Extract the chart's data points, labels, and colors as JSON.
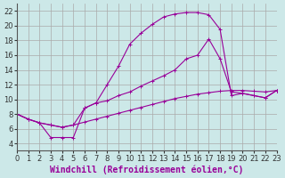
{
  "background_color": "#cce8e8",
  "grid_color": "#aaaaaa",
  "line_color": "#990099",
  "xlabel": "Windchill (Refroidissement éolien,°C)",
  "xlim": [
    0,
    23
  ],
  "ylim": [
    3,
    23
  ],
  "xticks": [
    0,
    1,
    2,
    3,
    4,
    5,
    6,
    7,
    8,
    9,
    10,
    11,
    12,
    13,
    14,
    15,
    16,
    17,
    18,
    19,
    20,
    21,
    22,
    23
  ],
  "yticks": [
    4,
    6,
    8,
    10,
    12,
    14,
    16,
    18,
    20,
    22
  ],
  "line1_x": [
    0,
    1,
    2,
    3,
    4,
    5,
    6,
    7,
    8,
    9,
    10,
    11,
    12,
    13,
    14,
    15,
    16,
    17,
    18,
    19,
    20,
    21,
    22,
    23
  ],
  "line1_y": [
    8.0,
    7.3,
    6.8,
    6.5,
    6.2,
    6.5,
    6.9,
    7.3,
    7.7,
    8.1,
    8.5,
    8.9,
    9.3,
    9.7,
    10.1,
    10.4,
    10.7,
    10.9,
    11.1,
    11.2,
    11.2,
    11.1,
    11.0,
    11.2
  ],
  "line2_x": [
    0,
    1,
    2,
    3,
    4,
    5,
    6,
    7,
    8,
    9,
    10,
    11,
    12,
    13,
    14,
    15,
    16,
    17,
    18,
    19,
    20,
    21,
    22,
    23
  ],
  "line2_y": [
    8.0,
    7.3,
    6.8,
    6.5,
    6.2,
    6.5,
    8.8,
    9.5,
    9.8,
    10.5,
    11.0,
    11.8,
    12.5,
    13.2,
    14.0,
    15.5,
    16.0,
    18.2,
    15.5,
    11.0,
    10.8,
    10.5,
    10.2,
    11.2
  ],
  "line3_x": [
    0,
    1,
    2,
    3,
    4,
    5,
    6,
    7,
    8,
    9,
    10,
    11,
    12,
    13,
    14,
    15,
    16,
    17,
    18,
    19,
    20,
    21,
    22,
    23
  ],
  "line3_y": [
    8.0,
    7.3,
    6.8,
    4.8,
    4.8,
    4.8,
    8.8,
    9.5,
    12.0,
    14.5,
    17.5,
    19.0,
    20.2,
    21.2,
    21.6,
    21.8,
    21.8,
    21.5,
    19.5,
    10.5,
    10.8,
    10.5,
    10.2,
    11.2
  ],
  "axis_fontsize": 7,
  "tick_fontsize": 6
}
